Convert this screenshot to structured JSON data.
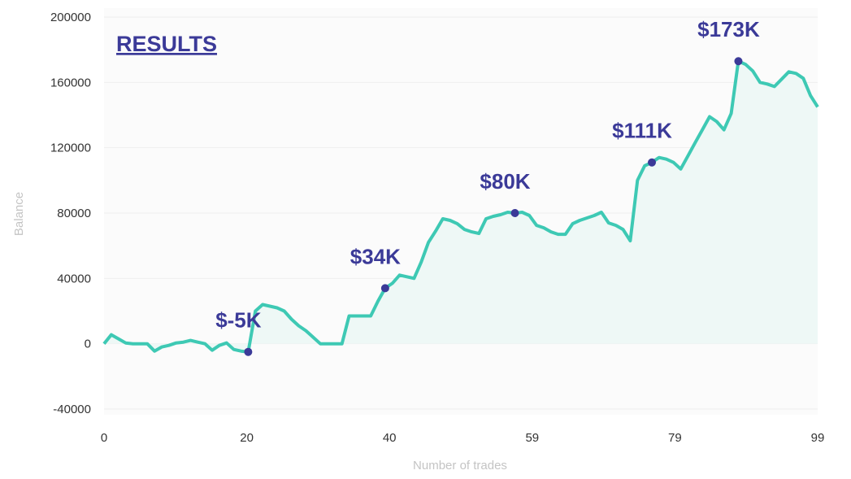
{
  "chart_data": {
    "type": "area",
    "title": "RESULTS",
    "xlabel": "Number of trades",
    "ylabel": "Balance",
    "xlim": [
      0,
      99
    ],
    "ylim": [
      -40000,
      200000
    ],
    "x_ticks": [
      "0",
      "20",
      "40",
      "59",
      "79",
      "99"
    ],
    "y_ticks": [
      "200000",
      "160000",
      "120000",
      "80000",
      "40000",
      "0",
      "-40000"
    ],
    "grid": true,
    "line_color": "#3ec9b4",
    "fill_color": "#eef8f6",
    "annotation_color": "#3b3a98",
    "values": [
      0,
      5500,
      3000,
      500,
      0,
      0,
      0,
      -4500,
      -2000,
      -1000,
      500,
      1000,
      2000,
      1000,
      0,
      -4000,
      -1000,
      500,
      -3500,
      -4500,
      -5000,
      20000,
      24000,
      23000,
      22000,
      20000,
      15000,
      11000,
      8000,
      4000,
      0,
      0,
      0,
      0,
      17000,
      17000,
      17000,
      17000,
      26000,
      34000,
      37000,
      42000,
      41000,
      40000,
      50000,
      62000,
      69000,
      76500,
      75500,
      73500,
      70000,
      68500,
      67500,
      76500,
      78000,
      79000,
      80500,
      80000,
      80500,
      78500,
      72500,
      71000,
      68500,
      67000,
      67000,
      73500,
      75500,
      77000,
      78500,
      80500,
      74000,
      72500,
      70000,
      63000,
      100000,
      109000,
      111000,
      114000,
      113000,
      111000,
      107000,
      115000,
      123000,
      131000,
      139000,
      136000,
      131000,
      141000,
      173000,
      171000,
      167000,
      160000,
      159000,
      157500,
      162000,
      166500,
      165500,
      162500,
      152000,
      145000
    ],
    "annotations": [
      {
        "index": 20,
        "label": "$-5K"
      },
      {
        "index": 39,
        "label": "$34K"
      },
      {
        "index": 57,
        "label": "$80K"
      },
      {
        "index": 76,
        "label": "$111K"
      },
      {
        "index": 88,
        "label": "$173K"
      }
    ]
  }
}
